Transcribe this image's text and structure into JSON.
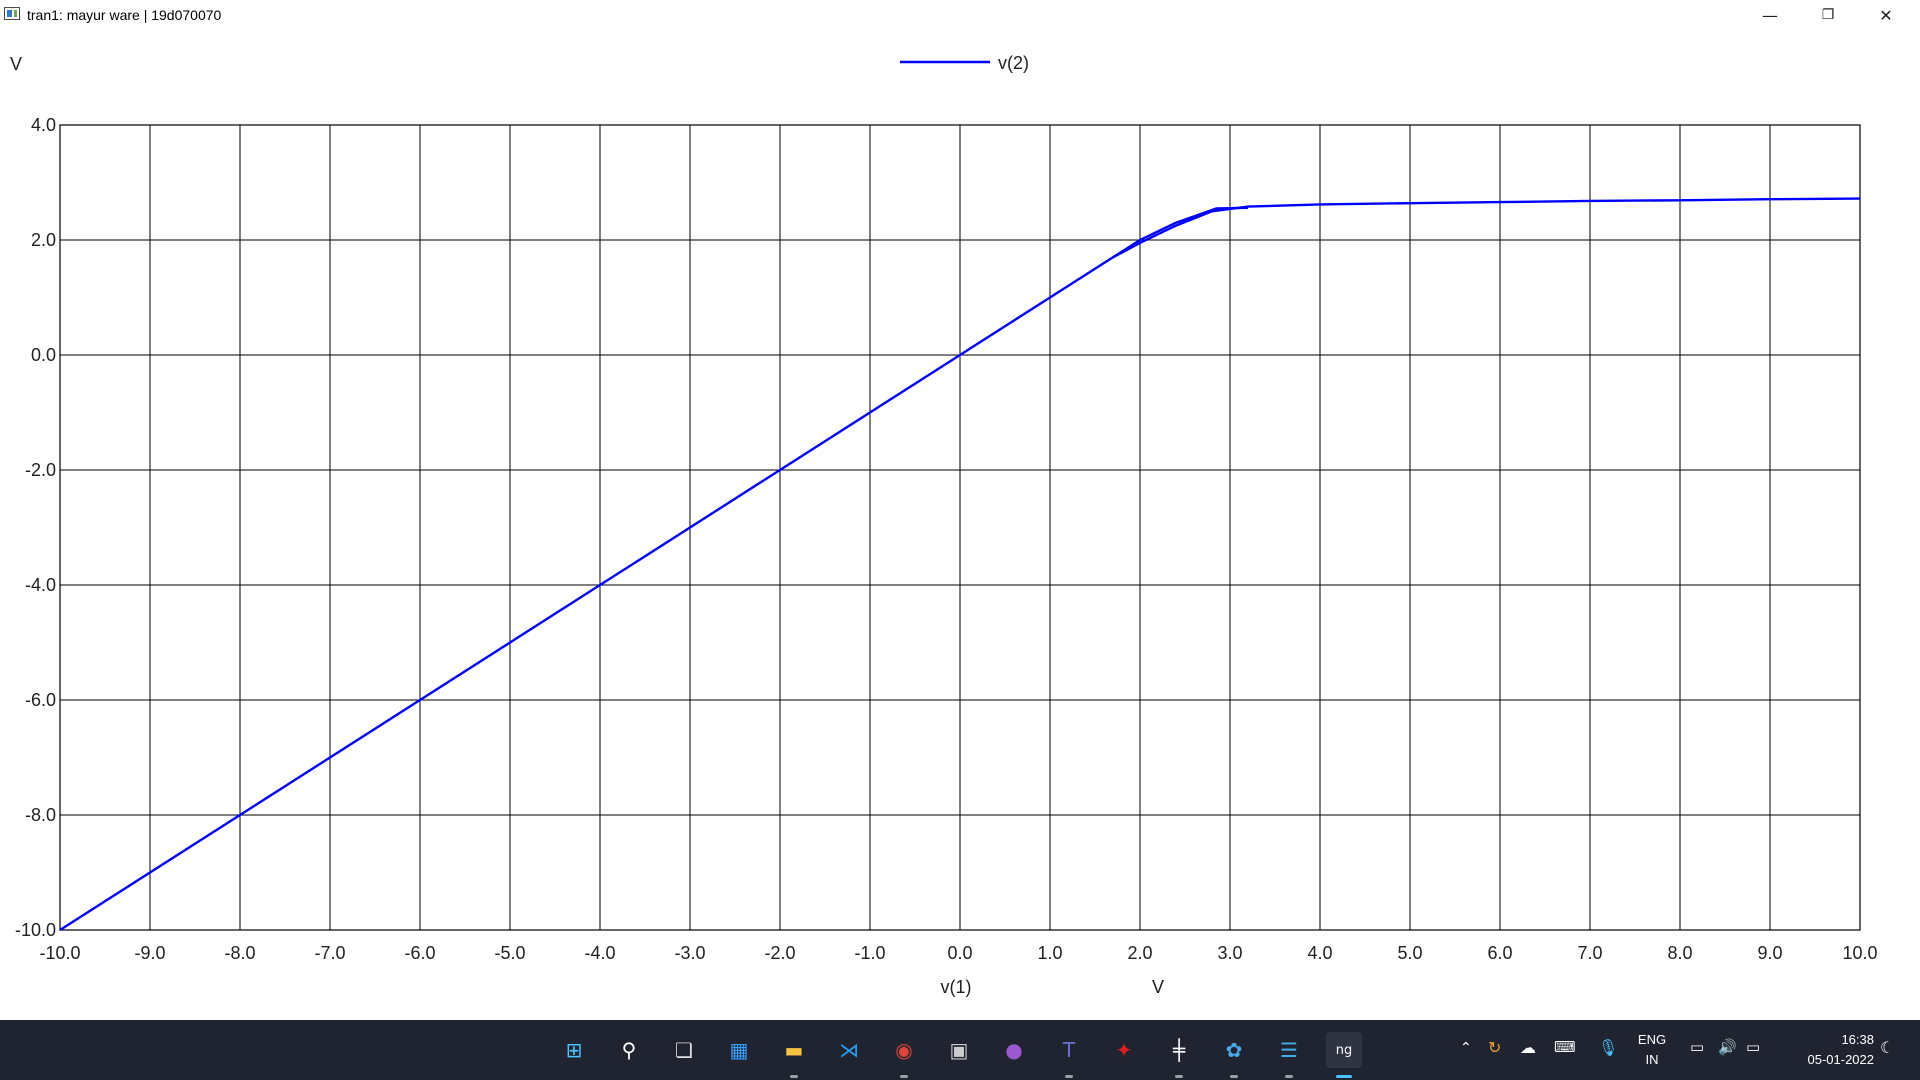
{
  "window": {
    "title": "tran1: mayur ware | 19d070070",
    "minimize_glyph": "—",
    "restore_glyph": "❐",
    "close_glyph": "✕"
  },
  "chart_data": {
    "type": "line",
    "ylabel": "V",
    "xlabel": "v(1)",
    "xunit": "V",
    "xlim": [
      -10,
      10
    ],
    "ylim": [
      -10,
      4
    ],
    "xticks": [
      "-10.0",
      "-9.0",
      "-8.0",
      "-7.0",
      "-6.0",
      "-5.0",
      "-4.0",
      "-3.0",
      "-2.0",
      "-1.0",
      "0.0",
      "1.0",
      "2.0",
      "3.0",
      "4.0",
      "5.0",
      "6.0",
      "7.0",
      "8.0",
      "9.0",
      "10.0"
    ],
    "yticks": [
      "4.0",
      "2.0",
      "0.0",
      "-2.0",
      "-4.0",
      "-6.0",
      "-8.0",
      "-10.0"
    ],
    "grid": true,
    "legend_position": "top-center",
    "series": [
      {
        "name": "v(2)",
        "color": "#0000ff",
        "x": [
          -10,
          -8,
          -6,
          -4,
          -2,
          0,
          1,
          1.7,
          2.0,
          2.4,
          2.8,
          3.2,
          4,
          5,
          6,
          7,
          8,
          9,
          10
        ],
        "y": [
          -10,
          -8,
          -6,
          -4,
          -2,
          0,
          1,
          1.7,
          1.95,
          2.25,
          2.5,
          2.58,
          2.62,
          2.64,
          2.66,
          2.68,
          2.69,
          2.71,
          2.72
        ]
      },
      {
        "name": "",
        "color": "#0000ff",
        "x": [
          1.7,
          2.0,
          2.4,
          2.85,
          3.2
        ],
        "y": [
          1.7,
          2.0,
          2.3,
          2.55,
          2.56
        ]
      }
    ]
  },
  "taskbar": {
    "apps": [
      {
        "name": "start",
        "glyph": "⊞",
        "color": "#4cc2ff"
      },
      {
        "name": "search",
        "glyph": "⚲",
        "color": "#ffffff"
      },
      {
        "name": "task-view",
        "glyph": "❏",
        "color": "#dddddd"
      },
      {
        "name": "widgets",
        "glyph": "▦",
        "color": "#3aa0ff"
      },
      {
        "name": "file-explorer",
        "glyph": "▬",
        "color": "#f5c242"
      },
      {
        "name": "vscode",
        "glyph": "⋊",
        "color": "#2b9ef0"
      },
      {
        "name": "chrome",
        "glyph": "◉",
        "color": "#e0443a"
      },
      {
        "name": "terminal",
        "glyph": "▣",
        "color": "#cccccc"
      },
      {
        "name": "github-desktop",
        "glyph": "●",
        "color": "#9b59d0"
      },
      {
        "name": "teams",
        "glyph": "T",
        "color": "#6b6fd6"
      },
      {
        "name": "acrobat",
        "glyph": "✦",
        "color": "#e02020"
      },
      {
        "name": "circuit-editor",
        "glyph": "╪",
        "color": "#ffffff"
      },
      {
        "name": "paint",
        "glyph": "✿",
        "color": "#4aa8e8"
      },
      {
        "name": "notepad",
        "glyph": "☰",
        "color": "#3fb0e8"
      },
      {
        "name": "ngspice",
        "glyph": "ng",
        "color": "#ffffff"
      }
    ],
    "tray": {
      "language_top": "ENG",
      "language_bottom": "IN",
      "time": "16:38",
      "date": "05-01-2022"
    }
  }
}
